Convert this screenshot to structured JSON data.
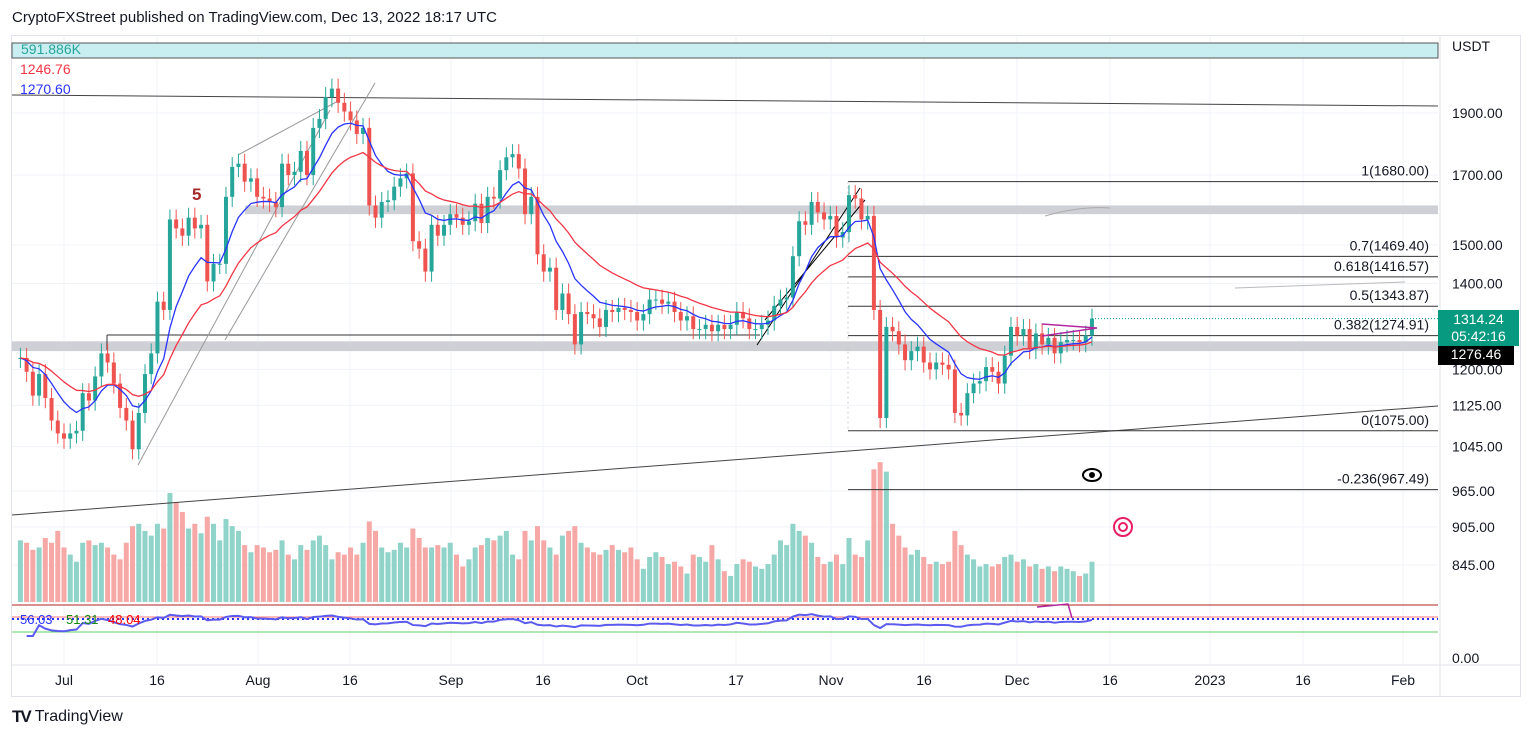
{
  "header": {
    "title": "CryptoFXStreet published on TradingView.com, Dec 13, 2022 18:17 UTC"
  },
  "legend": {
    "volume_value": "591.886K",
    "ema_red": "1246.76",
    "ema_blue": "1270.60",
    "rsi_values": [
      "56.03",
      "51.31",
      "48.04"
    ]
  },
  "price_axis": {
    "currency": "USDT",
    "ticks": [
      "1900.00",
      "1700.00",
      "1500.00",
      "1400.00",
      "1200.00",
      "1125.00",
      "1045.00",
      "965.00",
      "905.00",
      "845.00"
    ],
    "bottom_label": "0.00"
  },
  "current_price": {
    "price": "1314.24",
    "countdown": "05:42:16",
    "ema_tag": "1276.46"
  },
  "brand": "TradingView",
  "colors": {
    "up": "#26a69a",
    "down": "#ef5350",
    "ema_fast": "#2934ff",
    "ema_slow": "#f23645",
    "zone": "#cfd0d6",
    "price_tag": "#089981"
  },
  "annotations": {
    "wave_label": "5",
    "fib_levels": [
      {
        "label": "1(1680.00)",
        "value": 1680
      },
      {
        "label": "0.7(1469.40)",
        "value": 1469.4
      },
      {
        "label": "0.618(1416.57)",
        "value": 1416.57
      },
      {
        "label": "0.5(1343.87)",
        "value": 1343.87
      },
      {
        "label": "0.382(1274.91)",
        "value": 1274.91
      },
      {
        "label": "0(1075.00)",
        "value": 1075
      },
      {
        "label": "-0.236(967.49)",
        "value": 967.49
      }
    ],
    "icons": [
      "eye-icon",
      "target-icon"
    ]
  },
  "chart_data": {
    "type": "candlestick",
    "y_scale": "log",
    "grid": true,
    "start": "2022-06-24",
    "x_ticks": [
      "Jul",
      "16",
      "Aug",
      "16",
      "Sep",
      "16",
      "Oct",
      "17",
      "Nov",
      "16",
      "Dec",
      "16",
      "2023",
      "16",
      "Feb"
    ],
    "closes": [
      1225,
      1195,
      1145,
      1190,
      1140,
      1095,
      1070,
      1060,
      1070,
      1075,
      1150,
      1135,
      1185,
      1235,
      1215,
      1170,
      1120,
      1095,
      1040,
      1110,
      1190,
      1235,
      1355,
      1335,
      1570,
      1545,
      1525,
      1575,
      1545,
      1555,
      1405,
      1450,
      1450,
      1635,
      1725,
      1735,
      1680,
      1690,
      1635,
      1630,
      1620,
      1605,
      1735,
      1700,
      1710,
      1775,
      1700,
      1850,
      1880,
      1955,
      1985,
      1935,
      1905,
      1875,
      1830,
      1850,
      1610,
      1575,
      1620,
      1625,
      1665,
      1690,
      1705,
      1510,
      1490,
      1430,
      1555,
      1525,
      1555,
      1585,
      1575,
      1555,
      1565,
      1615,
      1560,
      1635,
      1630,
      1715,
      1755,
      1765,
      1720,
      1585,
      1635,
      1475,
      1430,
      1440,
      1335,
      1375,
      1325,
      1255,
      1330,
      1325,
      1315,
      1295,
      1335,
      1330,
      1340,
      1335,
      1330,
      1310,
      1325,
      1360,
      1360,
      1350,
      1355,
      1330,
      1310,
      1320,
      1290,
      1290,
      1300,
      1285,
      1300,
      1290,
      1300,
      1330,
      1315,
      1290,
      1290,
      1300,
      1310,
      1345,
      1360,
      1365,
      1470,
      1565,
      1555,
      1620,
      1590,
      1570,
      1580,
      1520,
      1535,
      1640,
      1630,
      1570,
      1580,
      1335,
      1100,
      1295,
      1285,
      1255,
      1220,
      1240,
      1250,
      1215,
      1200,
      1215,
      1210,
      1200,
      1110,
      1105,
      1150,
      1170,
      1175,
      1205,
      1195,
      1170,
      1230,
      1295,
      1275,
      1290,
      1245,
      1280,
      1255,
      1270,
      1235,
      1260,
      1265,
      1265,
      1260,
      1275,
      1314.24
    ],
    "volume_k": [
      260,
      250,
      220,
      230,
      270,
      250,
      300,
      230,
      200,
      170,
      250,
      260,
      240,
      250,
      230,
      200,
      180,
      250,
      320,
      330,
      300,
      280,
      330,
      310,
      460,
      420,
      380,
      310,
      330,
      290,
      360,
      330,
      260,
      350,
      320,
      300,
      240,
      210,
      240,
      230,
      210,
      220,
      260,
      200,
      180,
      240,
      220,
      260,
      280,
      240,
      180,
      210,
      200,
      230,
      200,
      250,
      340,
      300,
      230,
      210,
      220,
      250,
      230,
      310,
      270,
      230,
      230,
      240,
      230,
      250,
      200,
      150,
      180,
      230,
      240,
      270,
      260,
      280,
      300,
      200,
      180,
      300,
      260,
      320,
      260,
      230,
      200,
      280,
      300,
      320,
      250,
      230,
      210,
      200,
      220,
      240,
      220,
      210,
      230,
      180,
      140,
      190,
      210,
      190,
      160,
      170,
      150,
      120,
      200,
      190,
      170,
      240,
      180,
      130,
      110,
      160,
      180,
      170,
      150,
      140,
      160,
      200,
      260,
      240,
      330,
      300,
      280,
      250,
      190,
      160,
      170,
      200,
      160,
      270,
      200,
      190,
      260,
      560,
      590,
      550,
      330,
      280,
      230,
      200,
      220,
      190,
      160,
      170,
      160,
      170,
      300,
      240,
      200,
      180,
      150,
      160,
      150,
      160,
      190,
      200,
      170,
      180,
      150,
      160,
      140,
      150,
      130,
      150,
      140,
      130,
      110,
      120,
      170
    ]
  }
}
